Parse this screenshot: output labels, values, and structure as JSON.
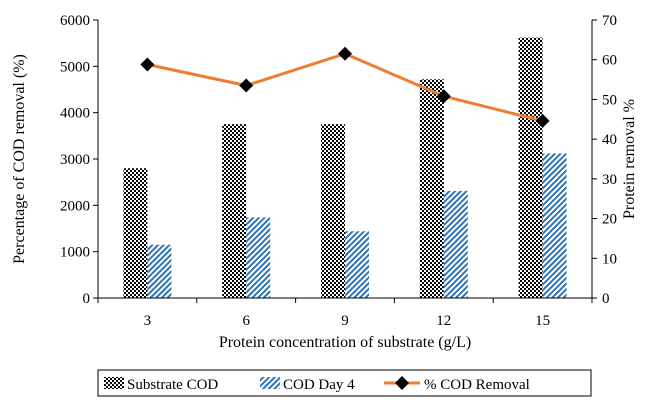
{
  "chart_data": {
    "type": "bar",
    "categories": [
      "3",
      "6",
      "9",
      "12",
      "15"
    ],
    "xlabel": "Protein concentration of substrate (g/L)",
    "ylabel": "Percentage of COD removal (%)",
    "y2label": "Protein removal %",
    "ylim": [
      0,
      6000
    ],
    "yticks": [
      "0",
      "1000",
      "2000",
      "3000",
      "4000",
      "5000",
      "6000"
    ],
    "y2lim": [
      0,
      70
    ],
    "y2ticks": [
      "0",
      "10",
      "20",
      "30",
      "40",
      "50",
      "60",
      "70"
    ],
    "grid": false,
    "legend_position": "bottom",
    "series": [
      {
        "name": "Substrate COD",
        "type": "bar",
        "axis": "left",
        "pattern": "checker",
        "values": [
          2800,
          3750,
          3750,
          4720,
          5620
        ]
      },
      {
        "name": "COD Day 4",
        "type": "bar",
        "axis": "left",
        "pattern": "hatch",
        "color": "#2e75b6",
        "values": [
          1150,
          1740,
          1440,
          2310,
          3120
        ]
      },
      {
        "name": "% COD Removal",
        "type": "line",
        "axis": "right",
        "color": "#ed7d31",
        "marker": "diamond",
        "values": [
          58.8,
          53.5,
          61.5,
          50.8,
          44.6
        ]
      }
    ]
  }
}
